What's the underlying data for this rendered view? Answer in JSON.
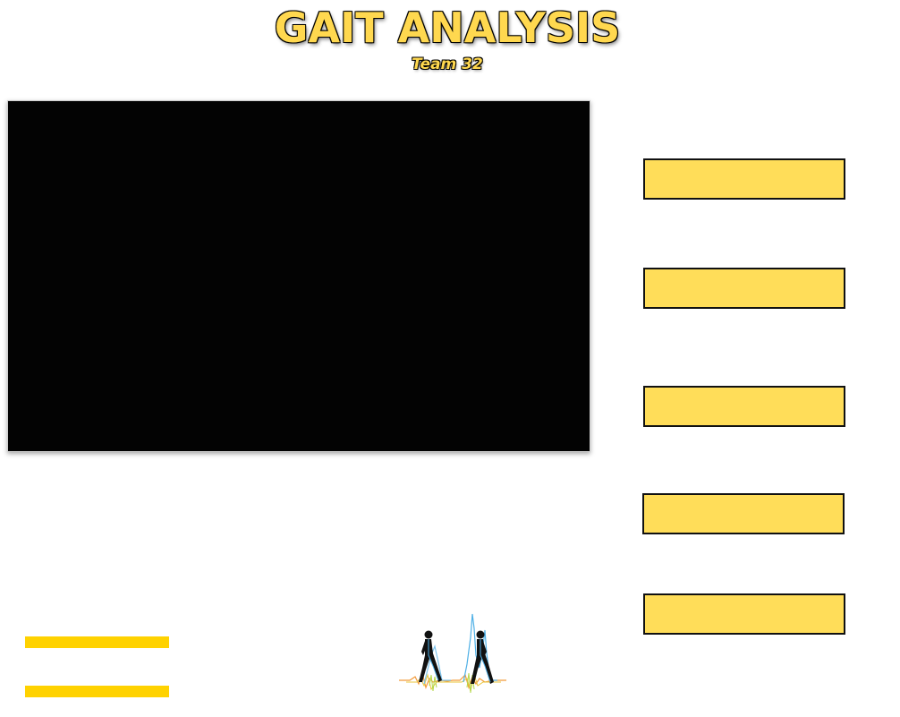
{
  "header": {
    "title": "GAIT ANALYSIS",
    "subtitle": "Team 32"
  },
  "video": {
    "state": "blank"
  },
  "side_buttons": [
    {
      "label": ""
    },
    {
      "label": ""
    },
    {
      "label": ""
    },
    {
      "label": ""
    },
    {
      "label": ""
    }
  ],
  "progress_bars": [
    {
      "label": ""
    },
    {
      "label": ""
    }
  ],
  "logo": {
    "icon": "walking-figures-gait-logo-icon"
  },
  "colors": {
    "accent_yellow": "#ffdd59",
    "bar_yellow": "#ffd200",
    "video_bg": "#030303",
    "title_fill": "#ffd84f"
  }
}
